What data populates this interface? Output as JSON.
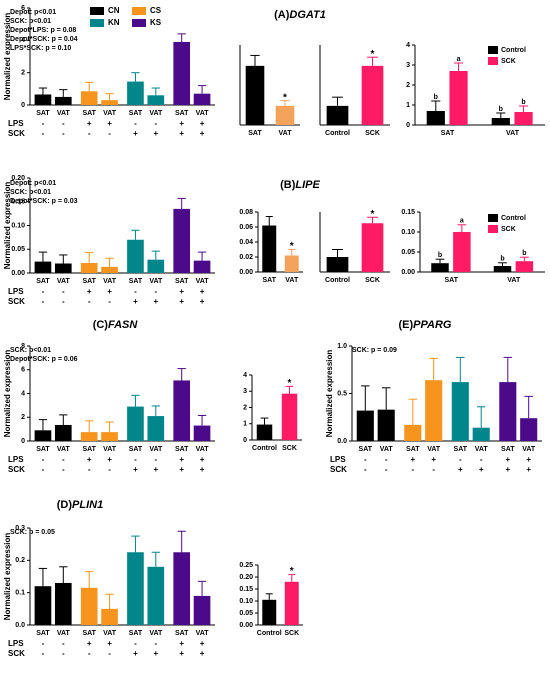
{
  "chart_data": [
    {
      "type": "bar",
      "label": "(A)",
      "gene": "DGAT1",
      "ylabel": "Normalized expression",
      "stats": [
        "Depot: p<0.01",
        "SCK: p<0.01",
        "Depot*LPS: p = 0.08",
        "Depot*SCK: p = 0.04",
        "LPS*SCK: p = 0.10"
      ],
      "legend": [
        {
          "name": "CN",
          "color": "#000000"
        },
        {
          "name": "CS",
          "color": "#f7941d"
        },
        {
          "name": "KN",
          "color": "#00868b"
        },
        {
          "name": "KS",
          "color": "#4b0a8a"
        }
      ],
      "categories": [
        "SAT",
        "VAT",
        "SAT",
        "VAT",
        "SAT",
        "VAT",
        "SAT",
        "VAT"
      ],
      "values": [
        0.65,
        0.5,
        0.85,
        0.3,
        1.45,
        0.6,
        3.9,
        0.7
      ],
      "errors": [
        0.4,
        0.45,
        0.55,
        0.4,
        0.55,
        0.45,
        0.5,
        0.5
      ],
      "colors": [
        "#000000",
        "#000000",
        "#f7941d",
        "#f7941d",
        "#00868b",
        "#00868b",
        "#4b0a8a",
        "#4b0a8a"
      ],
      "ylim": [
        0,
        6
      ],
      "yticks": [
        0,
        2,
        4,
        6
      ],
      "row_labels": [
        "LPS",
        "SCK"
      ],
      "rows": [
        [
          "-",
          "-",
          "+",
          "+",
          "-",
          "-",
          "+",
          "+"
        ],
        [
          "-",
          "-",
          "-",
          "-",
          "+",
          "+",
          "+",
          "+"
        ]
      ]
    },
    {
      "type": "bar",
      "categories": [
        "SAT",
        "VAT"
      ],
      "values": [
        1.7,
        0.55
      ],
      "errors": [
        0.3,
        0.15
      ],
      "colors": [
        "#000000",
        "#f5a35b"
      ],
      "sig_labels": [
        null,
        "*"
      ],
      "ylim": [
        0,
        2.3
      ]
    },
    {
      "type": "bar",
      "categories": [
        "Control",
        "SCK"
      ],
      "values": [
        0.55,
        1.7
      ],
      "errors": [
        0.25,
        0.25
      ],
      "colors": [
        "#000000",
        "#ff1a66"
      ],
      "sig_labels": [
        null,
        "*"
      ],
      "ylim": [
        0,
        2.3
      ]
    },
    {
      "type": "grouped_bar",
      "categories": [
        "SAT",
        "VAT"
      ],
      "ylim": [
        0,
        4
      ],
      "yticks": [
        0,
        1,
        2,
        3,
        4
      ],
      "series": [
        {
          "name": "Control",
          "color": "#000000",
          "values": [
            0.7,
            0.35
          ],
          "errors": [
            0.5,
            0.25
          ],
          "sig_labels": [
            "b",
            "b"
          ]
        },
        {
          "name": "SCK",
          "color": "#ff1a66",
          "values": [
            2.7,
            0.65
          ],
          "errors": [
            0.4,
            0.3
          ],
          "sig_labels": [
            "a",
            "b"
          ]
        }
      ]
    },
    {
      "type": "bar",
      "label": "(B)",
      "gene": "LIPE",
      "ylabel": "Normalized expression",
      "stats": [
        "Depot: p<0.01",
        "SCK: p<0.01",
        "Depot*SCK: p = 0.03"
      ],
      "categories": [
        "SAT",
        "VAT",
        "SAT",
        "VAT",
        "SAT",
        "VAT",
        "SAT",
        "VAT"
      ],
      "values": [
        0.024,
        0.02,
        0.021,
        0.013,
        0.07,
        0.028,
        0.135,
        0.026
      ],
      "errors": [
        0.02,
        0.018,
        0.022,
        0.018,
        0.02,
        0.018,
        0.022,
        0.018
      ],
      "colors": [
        "#000000",
        "#000000",
        "#f7941d",
        "#f7941d",
        "#00868b",
        "#00868b",
        "#4b0a8a",
        "#4b0a8a"
      ],
      "ylim": [
        0,
        0.2
      ],
      "yticks": [
        {
          "value": 0,
          "label": "0.00"
        },
        {
          "value": 0.05,
          "label": "0.05"
        },
        {
          "value": 0.1,
          "label": "0.10"
        },
        {
          "value": 0.15,
          "label": "0.15"
        },
        {
          "value": 0.2,
          "label": "0.20"
        }
      ],
      "row_labels": [
        "LPS",
        "SCK"
      ],
      "rows": [
        [
          "-",
          "-",
          "+",
          "+",
          "-",
          "-",
          "+",
          "+"
        ],
        [
          "-",
          "-",
          "-",
          "-",
          "+",
          "+",
          "+",
          "+"
        ]
      ]
    },
    {
      "type": "bar",
      "categories": [
        "SAT",
        "VAT"
      ],
      "values": [
        0.062,
        0.022
      ],
      "errors": [
        0.012,
        0.008
      ],
      "colors": [
        "#000000",
        "#f5a35b"
      ],
      "sig_labels": [
        null,
        "*"
      ],
      "ylim": [
        0,
        0.08
      ],
      "yticks": [
        {
          "value": 0,
          "label": "0.00"
        },
        {
          "value": 0.02,
          "label": "0.02"
        },
        {
          "value": 0.04,
          "label": "0.04"
        },
        {
          "value": 0.06,
          "label": "0.06"
        },
        {
          "value": 0.08,
          "label": "0.08"
        }
      ]
    },
    {
      "type": "bar",
      "categories": [
        "Control",
        "SCK"
      ],
      "values": [
        0.02,
        0.065
      ],
      "errors": [
        0.01,
        0.008
      ],
      "colors": [
        "#000000",
        "#ff1a66"
      ],
      "sig_labels": [
        null,
        "*"
      ],
      "ylim": [
        0,
        0.08
      ]
    },
    {
      "type": "grouped_bar",
      "categories": [
        "SAT",
        "VAT"
      ],
      "ylim": [
        0,
        0.15
      ],
      "yticks": [
        {
          "value": 0,
          "label": "0.00"
        },
        {
          "value": 0.05,
          "label": "0.05"
        },
        {
          "value": 0.1,
          "label": "0.10"
        },
        {
          "value": 0.15,
          "label": "0.15"
        }
      ],
      "series": [
        {
          "name": "Control",
          "color": "#000000",
          "values": [
            0.022,
            0.015
          ],
          "errors": [
            0.01,
            0.008
          ],
          "sig_labels": [
            "b",
            "b"
          ]
        },
        {
          "name": "SCK",
          "color": "#ff1a66",
          "values": [
            0.1,
            0.027
          ],
          "errors": [
            0.018,
            0.01
          ],
          "sig_labels": [
            "a",
            "b"
          ]
        }
      ]
    },
    {
      "type": "bar",
      "label": "(C)",
      "gene": "FASN",
      "ylabel": "Normalized expression",
      "stats": [
        "SCK: p<0.01",
        "Depot*SCK: p = 0.06"
      ],
      "categories": [
        "SAT",
        "VAT",
        "SAT",
        "VAT",
        "SAT",
        "VAT",
        "SAT",
        "VAT"
      ],
      "values": [
        0.9,
        1.35,
        0.75,
        0.75,
        2.9,
        2.1,
        5.1,
        1.3
      ],
      "errors": [
        0.9,
        0.85,
        0.95,
        0.85,
        0.95,
        0.85,
        1.0,
        0.85
      ],
      "colors": [
        "#000000",
        "#000000",
        "#f7941d",
        "#f7941d",
        "#00868b",
        "#00868b",
        "#4b0a8a",
        "#4b0a8a"
      ],
      "ylim": [
        0,
        8
      ],
      "yticks": [
        0,
        2,
        4,
        6,
        8
      ],
      "row_labels": [
        "LPS",
        "SCK"
      ],
      "rows": [
        [
          "-",
          "-",
          "+",
          "+",
          "-",
          "-",
          "+",
          "+"
        ],
        [
          "-",
          "-",
          "-",
          "-",
          "+",
          "+",
          "+",
          "+"
        ]
      ]
    },
    {
      "type": "bar",
      "categories": [
        "Control",
        "SCK"
      ],
      "values": [
        0.95,
        2.85
      ],
      "errors": [
        0.4,
        0.45
      ],
      "colors": [
        "#000000",
        "#ff1a66"
      ],
      "sig_labels": [
        null,
        "*"
      ],
      "ylim": [
        0,
        4
      ],
      "yticks": [
        0,
        1,
        2,
        3,
        4
      ]
    },
    {
      "type": "bar",
      "label": "(E)",
      "gene": "PPARG",
      "ylabel": "Normalized expression",
      "stats": [
        "SCK: p = 0.09"
      ],
      "categories": [
        "SAT",
        "VAT",
        "SAT",
        "VAT",
        "SAT",
        "VAT",
        "SAT",
        "VAT"
      ],
      "values": [
        0.32,
        0.33,
        0.17,
        0.64,
        0.62,
        0.14,
        0.62,
        0.24
      ],
      "errors": [
        0.26,
        0.23,
        0.27,
        0.23,
        0.26,
        0.22,
        0.26,
        0.23
      ],
      "colors": [
        "#000000",
        "#000000",
        "#f7941d",
        "#f7941d",
        "#00868b",
        "#00868b",
        "#4b0a8a",
        "#4b0a8a"
      ],
      "ylim": [
        0,
        1
      ],
      "yticks": [
        {
          "value": 0,
          "label": "0.0"
        },
        {
          "value": 0.5,
          "label": "0.5"
        },
        {
          "value": 1,
          "label": "1.0"
        }
      ],
      "row_labels": [
        "LPS",
        "SCK"
      ],
      "rows": [
        [
          "-",
          "-",
          "+",
          "+",
          "-",
          "-",
          "+",
          "+"
        ],
        [
          "-",
          "-",
          "-",
          "-",
          "+",
          "+",
          "+",
          "+"
        ]
      ]
    },
    {
      "type": "bar",
      "label": "(D)",
      "gene": "PLIN1",
      "ylabel": "Normalized expression",
      "stats": [
        "SCK: p = 0.05"
      ],
      "categories": [
        "SAT",
        "VAT",
        "SAT",
        "VAT",
        "SAT",
        "VAT",
        "SAT",
        "VAT"
      ],
      "values": [
        0.12,
        0.13,
        0.115,
        0.05,
        0.225,
        0.18,
        0.225,
        0.09
      ],
      "errors": [
        0.055,
        0.05,
        0.05,
        0.045,
        0.05,
        0.045,
        0.065,
        0.045
      ],
      "colors": [
        "#000000",
        "#000000",
        "#f7941d",
        "#f7941d",
        "#00868b",
        "#00868b",
        "#4b0a8a",
        "#4b0a8a"
      ],
      "ylim": [
        0,
        0.3
      ],
      "yticks": [
        {
          "value": 0,
          "label": "0.0"
        },
        {
          "value": 0.1,
          "label": "0.1"
        },
        {
          "value": 0.2,
          "label": "0.2"
        },
        {
          "value": 0.3,
          "label": "0.3"
        }
      ],
      "row_labels": [
        "LPS",
        "SCK"
      ],
      "rows": [
        [
          "-",
          "-",
          "+",
          "+",
          "-",
          "-",
          "+",
          "+"
        ],
        [
          "-",
          "-",
          "-",
          "-",
          "+",
          "+",
          "+",
          "+"
        ]
      ]
    },
    {
      "type": "bar",
      "categories": [
        "Control",
        "SCK"
      ],
      "values": [
        0.105,
        0.18
      ],
      "errors": [
        0.025,
        0.03
      ],
      "colors": [
        "#000000",
        "#ff1a66"
      ],
      "sig_labels": [
        null,
        "*"
      ],
      "ylim": [
        0,
        0.25
      ],
      "yticks": [
        {
          "value": 0,
          "label": "0.00"
        },
        {
          "value": 0.05,
          "label": "0.05"
        },
        {
          "value": 0.1,
          "label": "0.10"
        },
        {
          "value": 0.15,
          "label": "0.15"
        },
        {
          "value": 0.2,
          "label": "0.20"
        },
        {
          "value": 0.25,
          "label": "0.25"
        }
      ]
    }
  ]
}
